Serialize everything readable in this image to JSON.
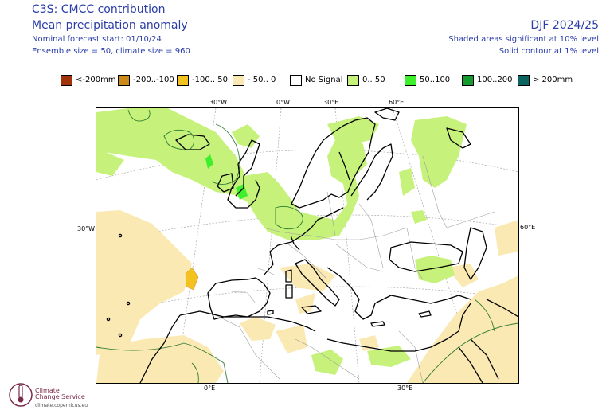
{
  "header": {
    "title": "C3S: CMCC contribution",
    "subtitle": "Mean precipitation anomaly",
    "forecast_start": "Nominal forecast start: 01/10/24",
    "ensemble": "Ensemble size = 50, climate size = 960",
    "period": "DJF 2024/25",
    "sig_shaded": "Shaded areas significant at 10% level",
    "sig_contour": "Solid contour at 1% level"
  },
  "legend": [
    {
      "label": "<-200mm",
      "color": "#a0330a"
    },
    {
      "label": "-200..-100",
      "color": "#cc8a1a"
    },
    {
      "label": "-100.. 50",
      "color": "#f3c21f"
    },
    {
      "label": "- 50.. 0",
      "color": "#fbe9b3"
    },
    {
      "label": "No Signal",
      "color": "#ffffff"
    },
    {
      "label": "0.. 50",
      "color": "#c6f27b"
    },
    {
      "label": "50..100",
      "color": "#3df02b"
    },
    {
      "label": "100..200",
      "color": "#159a2e"
    },
    {
      "label": "> 200mm",
      "color": "#0b6460"
    }
  ],
  "grid_labels": {
    "top": [
      "30°W",
      "0°W",
      "30°E",
      "60°E"
    ],
    "left": "30°W",
    "right": "60°E",
    "bottom": [
      "0°E",
      "30°E"
    ]
  },
  "logo": {
    "line1": "Climate",
    "line2": "Change Service",
    "url": "climate.copernicus.eu"
  },
  "colors": {
    "header_text": "#2a3da8",
    "wet_light": "#c6f27b",
    "wet_mid": "#3df02b",
    "dry_light": "#fbe9b3",
    "dry_mid": "#f3c21f",
    "sig_contour": "#2e7d32"
  }
}
